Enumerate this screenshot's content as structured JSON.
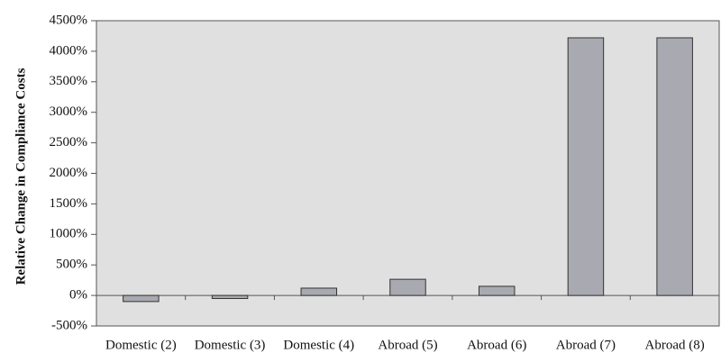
{
  "chart_data": {
    "type": "bar",
    "y_axis_label": "Relative Change in Compliance Costs",
    "categories": [
      "Domestic (2)",
      "Domestic (3)",
      "Domestic (4)",
      "Abroad (5)",
      "Abroad (6)",
      "Abroad (7)",
      "Abroad (8)"
    ],
    "values": [
      -100,
      -50,
      120,
      265,
      150,
      4220,
      4220
    ],
    "color": "#a9a9b1",
    "ylim": [
      -500,
      4500
    ],
    "yticks": [
      {
        "value": -500,
        "label": "-500%"
      },
      {
        "value": 0,
        "label": "0%"
      },
      {
        "value": 500,
        "label": "500%"
      },
      {
        "value": 1000,
        "label": "1000%"
      },
      {
        "value": 1500,
        "label": "1500%"
      },
      {
        "value": 2000,
        "label": "2000%"
      },
      {
        "value": 2500,
        "label": "2500%"
      },
      {
        "value": 3000,
        "label": "3000%"
      },
      {
        "value": 3500,
        "label": "3500%"
      },
      {
        "value": 4000,
        "label": "4000%"
      },
      {
        "value": 4500,
        "label": "4500%"
      }
    ],
    "grid": false
  }
}
